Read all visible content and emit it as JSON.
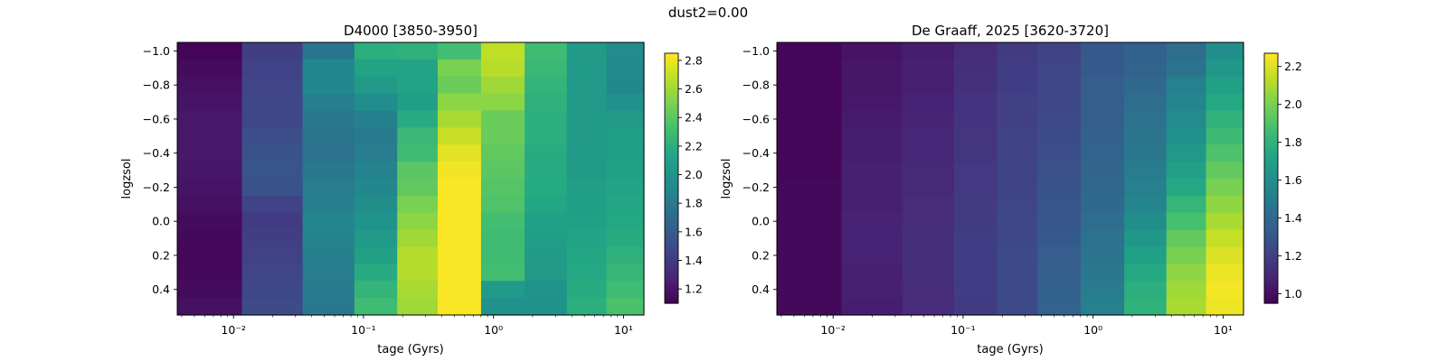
{
  "figure": {
    "suptitle": "dust2=0.00"
  },
  "colors": {
    "colormap": "viridis"
  },
  "chart_data": [
    {
      "type": "heatmap",
      "title": "D4000 [3850-3950]",
      "xlabel": "tage (Gyrs)",
      "ylabel": "logzsol",
      "x_scale": "log",
      "x": [
        0.00655,
        0.0206,
        0.0561,
        0.129,
        0.256,
        0.541,
        1.19,
        2.53,
        5.3,
        10.3
      ],
      "x_tick_labels": [
        "10⁻²",
        "10⁻¹",
        "10⁰",
        "10¹"
      ],
      "y": [
        -1.0,
        -0.9,
        -0.8,
        -0.7,
        -0.6,
        -0.5,
        -0.4,
        -0.3,
        -0.2,
        -0.1,
        0.0,
        0.1,
        0.2,
        0.3,
        0.4,
        0.5
      ],
      "y_tick_labels": [
        "−1.0",
        "−0.8",
        "−0.6",
        "−0.4",
        "−0.2",
        "0.0",
        "0.2",
        "0.4"
      ],
      "colorbar": {
        "min": 1.1,
        "max": 2.85,
        "ticks": [
          "1.2",
          "1.4",
          "1.6",
          "1.8",
          "2.0",
          "2.2",
          "2.4",
          "2.6",
          "2.8"
        ],
        "tick_values": [
          1.2,
          1.4,
          1.6,
          1.8,
          2.0,
          2.2,
          2.4,
          2.6,
          2.8
        ]
      },
      "z": [
        [
          1.12,
          1.42,
          1.78,
          2.2,
          2.22,
          2.32,
          2.68,
          2.3,
          2.06,
          1.94
        ],
        [
          1.15,
          1.45,
          1.9,
          2.12,
          2.12,
          2.5,
          2.66,
          2.28,
          2.05,
          1.93
        ],
        [
          1.18,
          1.46,
          1.92,
          2.05,
          2.12,
          2.45,
          2.6,
          2.25,
          2.04,
          1.92
        ],
        [
          1.2,
          1.48,
          1.85,
          1.95,
          2.08,
          2.55,
          2.55,
          2.22,
          2.04,
          1.98
        ],
        [
          1.22,
          1.48,
          1.8,
          1.85,
          2.18,
          2.62,
          2.45,
          2.2,
          2.06,
          2.06
        ],
        [
          1.22,
          1.52,
          1.78,
          1.82,
          2.28,
          2.7,
          2.45,
          2.2,
          2.06,
          2.08
        ],
        [
          1.22,
          1.55,
          1.76,
          1.84,
          2.3,
          2.78,
          2.42,
          2.18,
          2.05,
          2.08
        ],
        [
          1.21,
          1.56,
          1.8,
          1.88,
          2.4,
          2.82,
          2.4,
          2.18,
          2.06,
          2.1
        ],
        [
          1.2,
          1.55,
          1.84,
          1.92,
          2.42,
          2.84,
          2.38,
          2.17,
          2.08,
          2.12
        ],
        [
          1.18,
          1.45,
          1.85,
          1.96,
          2.5,
          2.84,
          2.36,
          2.14,
          2.08,
          2.14
        ],
        [
          1.15,
          1.4,
          1.9,
          2.0,
          2.55,
          2.84,
          2.32,
          2.1,
          2.1,
          2.16
        ],
        [
          1.14,
          1.42,
          1.88,
          2.05,
          2.6,
          2.84,
          2.3,
          2.08,
          2.12,
          2.18
        ],
        [
          1.13,
          1.44,
          1.85,
          2.1,
          2.65,
          2.84,
          2.3,
          2.06,
          2.14,
          2.22
        ],
        [
          1.13,
          1.46,
          1.83,
          2.18,
          2.65,
          2.84,
          2.32,
          2.05,
          2.16,
          2.26
        ],
        [
          1.15,
          1.48,
          1.82,
          2.25,
          2.62,
          2.84,
          2.05,
          2.0,
          2.18,
          2.3
        ],
        [
          1.18,
          1.5,
          1.8,
          2.3,
          2.6,
          2.84,
          1.98,
          1.98,
          2.2,
          2.35
        ]
      ]
    },
    {
      "type": "heatmap",
      "title": "De Graaff, 2025 [3620-3720]",
      "xlabel": "tage (Gyrs)",
      "ylabel": "logzsol",
      "x_scale": "log",
      "x": [
        0.00655,
        0.0206,
        0.0561,
        0.129,
        0.256,
        0.541,
        1.19,
        2.53,
        5.3,
        10.3
      ],
      "x_tick_labels": [
        "10⁻²",
        "10⁻¹",
        "10⁰",
        "10¹"
      ],
      "y": [
        -1.0,
        -0.9,
        -0.8,
        -0.7,
        -0.6,
        -0.5,
        -0.4,
        -0.3,
        -0.2,
        -0.1,
        0.0,
        0.1,
        0.2,
        0.3,
        0.4,
        0.5
      ],
      "y_tick_labels": [
        "−1.0",
        "−0.8",
        "−0.6",
        "−0.4",
        "−0.2",
        "0.0",
        "0.2",
        "0.4"
      ],
      "colorbar": {
        "min": 0.95,
        "max": 2.27,
        "ticks": [
          "1.0",
          "1.2",
          "1.4",
          "1.6",
          "1.8",
          "2.0",
          "2.2"
        ],
        "tick_values": [
          1.0,
          1.2,
          1.4,
          1.6,
          1.8,
          2.0,
          2.2
        ]
      },
      "z": [
        [
          0.97,
          1.02,
          1.06,
          1.12,
          1.18,
          1.22,
          1.32,
          1.36,
          1.42,
          1.6
        ],
        [
          0.97,
          1.03,
          1.07,
          1.13,
          1.19,
          1.23,
          1.33,
          1.37,
          1.45,
          1.65
        ],
        [
          0.97,
          1.03,
          1.07,
          1.14,
          1.19,
          1.24,
          1.34,
          1.4,
          1.52,
          1.7
        ],
        [
          0.97,
          1.04,
          1.08,
          1.15,
          1.2,
          1.24,
          1.35,
          1.42,
          1.55,
          1.75
        ],
        [
          0.97,
          1.05,
          1.09,
          1.15,
          1.2,
          1.25,
          1.35,
          1.44,
          1.58,
          1.8
        ],
        [
          0.97,
          1.06,
          1.1,
          1.16,
          1.21,
          1.26,
          1.36,
          1.46,
          1.62,
          1.85
        ],
        [
          0.97,
          1.06,
          1.1,
          1.16,
          1.21,
          1.27,
          1.37,
          1.48,
          1.66,
          1.9
        ],
        [
          0.97,
          1.07,
          1.11,
          1.17,
          1.22,
          1.28,
          1.38,
          1.5,
          1.7,
          1.95
        ],
        [
          0.98,
          1.07,
          1.11,
          1.17,
          1.22,
          1.29,
          1.39,
          1.52,
          1.75,
          2.0
        ],
        [
          0.98,
          1.07,
          1.12,
          1.18,
          1.23,
          1.3,
          1.4,
          1.55,
          1.82,
          2.05
        ],
        [
          0.98,
          1.08,
          1.12,
          1.18,
          1.24,
          1.31,
          1.42,
          1.6,
          1.88,
          2.1
        ],
        [
          0.98,
          1.08,
          1.13,
          1.19,
          1.24,
          1.32,
          1.44,
          1.65,
          1.95,
          2.15
        ],
        [
          0.98,
          1.08,
          1.13,
          1.19,
          1.25,
          1.34,
          1.46,
          1.7,
          2.0,
          2.2
        ],
        [
          0.98,
          1.07,
          1.13,
          1.19,
          1.25,
          1.35,
          1.48,
          1.75,
          2.05,
          2.23
        ],
        [
          0.98,
          1.07,
          1.12,
          1.19,
          1.25,
          1.36,
          1.5,
          1.78,
          2.08,
          2.25
        ],
        [
          0.98,
          1.06,
          1.12,
          1.18,
          1.25,
          1.37,
          1.52,
          1.8,
          2.1,
          2.24
        ]
      ]
    }
  ]
}
